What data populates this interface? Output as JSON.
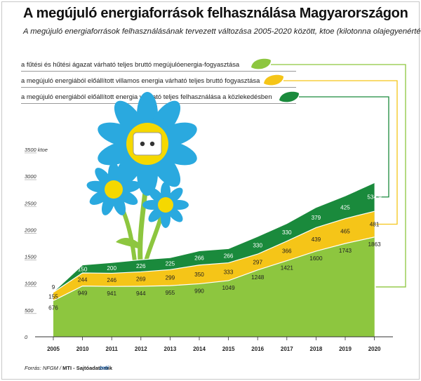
{
  "title": "A megújuló energiaforrások felhasználása Magyarországon",
  "subtitle": "A megújuló energiaforrások felhasználásának tervezett változása 2005-2020 között, ktoe (kilotonna olajegyenérték)",
  "source_label": "Forrás: NFGM / ",
  "source_agency": "MTI - Sajtóadatbank",
  "logo": "mti",
  "colors": {
    "heating": "#8dc63f",
    "electricity": "#f5c518",
    "transport": "#1a8a3c"
  },
  "chart_data": {
    "type": "area",
    "stacked": true,
    "unit": "ktoe",
    "categories": [
      "2005",
      "2010",
      "2011",
      "2012",
      "2013",
      "2014",
      "2015",
      "2016",
      "2017",
      "2018",
      "2019",
      "2020"
    ],
    "ylim": [
      0,
      3500
    ],
    "yticks": [
      "0",
      "500",
      "1000",
      "1500",
      "2000",
      "2500",
      "3000",
      "3500 ktoe"
    ],
    "ytick_values": [
      0,
      500,
      1000,
      1500,
      2000,
      2500,
      3000,
      3500
    ],
    "grid": false,
    "series": [
      {
        "name": "a fűtési és hűtési ágazat várható teljes bruttó megújulóenergia-fogyasztása",
        "color": "#8dc63f",
        "values": [
          676,
          949,
          941,
          944,
          955,
          990,
          1049,
          1248,
          1421,
          1600,
          1743,
          1863
        ]
      },
      {
        "name": "a megújuló energiából előállított villamos energia várható teljes bruttó fogyasztása",
        "color": "#f5c518",
        "values": [
          155,
          244,
          246,
          269,
          299,
          350,
          333,
          297,
          366,
          439,
          465,
          481
        ]
      },
      {
        "name": "a megújuló energiából előállított energia várható teljes felhasználása a közlekedésben",
        "color": "#1a8a3c",
        "values": [
          9,
          150,
          200,
          226,
          225,
          266,
          266,
          330,
          330,
          379,
          425,
          534.9
        ]
      }
    ],
    "data_labels": {
      "heating": [
        "676",
        "949",
        "941",
        "944",
        "955",
        "990",
        "1049",
        "1248",
        "1421",
        "1600",
        "1743",
        "1863"
      ],
      "electricity": [
        "155",
        "244",
        "246",
        "269",
        "299",
        "350",
        "333",
        "297",
        "366",
        "439",
        "465",
        "481"
      ],
      "transport": [
        "9",
        "150",
        "200",
        "226",
        "225",
        "266",
        "266",
        "330",
        "330",
        "379",
        "425",
        "534,9"
      ]
    }
  }
}
